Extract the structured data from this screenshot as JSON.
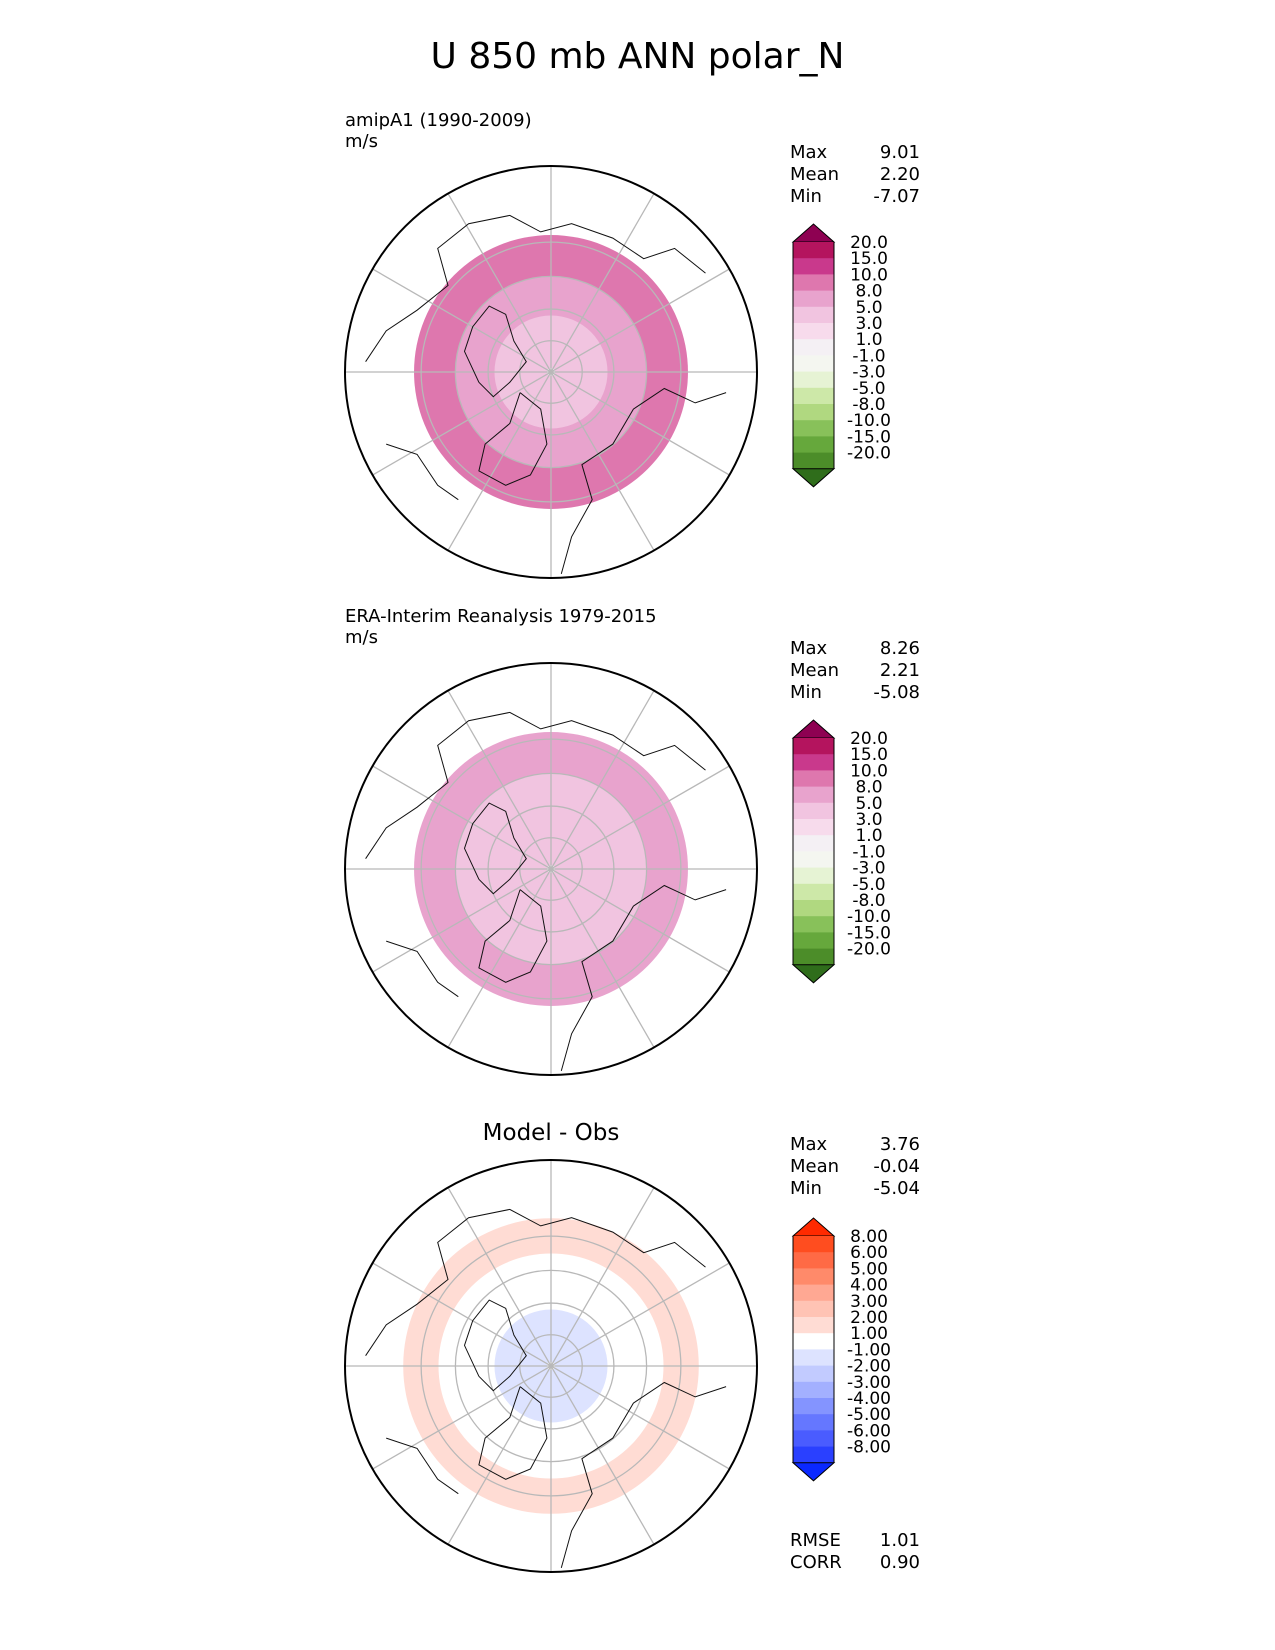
{
  "title": "U 850 mb ANN polar_N",
  "chart_data": [
    {
      "type": "heatmap",
      "projection": "north-polar-stereographic",
      "label_line1": "amipA1 (1990-2009)",
      "label_line2": "m/s",
      "stats": [
        {
          "name": "Max",
          "value": "9.01"
        },
        {
          "name": "Mean",
          "value": "2.20"
        },
        {
          "name": "Min",
          "value": "-7.07"
        }
      ],
      "colorbar_levels": [
        "20.0",
        "15.0",
        "10.0",
        "8.0",
        "5.0",
        "3.0",
        "1.0",
        "-1.0",
        "-3.0",
        "-5.0",
        "-8.0",
        "-10.0",
        "-15.0",
        "-20.0"
      ],
      "colorbar_colors": [
        "#8e0152",
        "#b4145e",
        "#c9398c",
        "#de77ae",
        "#e8a3cd",
        "#f1c4e0",
        "#f7dbec",
        "#f4f0f4",
        "#f4f6f0",
        "#e6f3d4",
        "#cde8a8",
        "#b0d880",
        "#88c15a",
        "#66a83c",
        "#4c8d29",
        "#2f6d1b"
      ],
      "regions": [
        {
          "lat": 90,
          "value": 0
        },
        {
          "lat": 72,
          "value": 3
        },
        {
          "lat": 60,
          "value": 5
        },
        {
          "lat": 48,
          "value": 8
        }
      ]
    },
    {
      "type": "heatmap",
      "projection": "north-polar-stereographic",
      "label_line1": "ERA-Interim Reanalysis 1979-2015",
      "label_line2": "m/s",
      "stats": [
        {
          "name": "Max",
          "value": "8.26"
        },
        {
          "name": "Mean",
          "value": "2.21"
        },
        {
          "name": "Min",
          "value": "-5.08"
        }
      ],
      "colorbar_levels": [
        "20.0",
        "15.0",
        "10.0",
        "8.0",
        "5.0",
        "3.0",
        "1.0",
        "-1.0",
        "-3.0",
        "-5.0",
        "-8.0",
        "-10.0",
        "-15.0",
        "-20.0"
      ],
      "colorbar_colors": [
        "#8e0152",
        "#b4145e",
        "#c9398c",
        "#de77ae",
        "#e8a3cd",
        "#f1c4e0",
        "#f7dbec",
        "#f4f0f4",
        "#f4f6f0",
        "#e6f3d4",
        "#cde8a8",
        "#b0d880",
        "#88c15a",
        "#66a83c",
        "#4c8d29",
        "#2f6d1b"
      ],
      "regions": [
        {
          "lat": 90,
          "value": 0
        },
        {
          "lat": 72,
          "value": 3
        },
        {
          "lat": 60,
          "value": 4
        },
        {
          "lat": 48,
          "value": 6
        }
      ]
    },
    {
      "type": "heatmap",
      "projection": "north-polar-stereographic",
      "title": "Model - Obs",
      "stats": [
        {
          "name": "Max",
          "value": "3.76"
        },
        {
          "name": "Mean",
          "value": "-0.04"
        },
        {
          "name": "Min",
          "value": "-5.04"
        }
      ],
      "metrics": [
        {
          "name": "RMSE",
          "value": "1.01"
        },
        {
          "name": "CORR",
          "value": "0.90"
        }
      ],
      "colorbar_levels": [
        "8.00",
        "6.00",
        "5.00",
        "4.00",
        "3.00",
        "2.00",
        "1.00",
        "-1.00",
        "-2.00",
        "-3.00",
        "-4.00",
        "-5.00",
        "-6.00",
        "-8.00"
      ],
      "colorbar_colors": [
        "#ff2a00",
        "#ff4d1f",
        "#ff6a45",
        "#ff8a6a",
        "#ffa893",
        "#ffc3b4",
        "#ffdcd4",
        "#ffffff",
        "#dde3ff",
        "#c2cbff",
        "#a3b0ff",
        "#8494ff",
        "#6577ff",
        "#4a5cff",
        "#2a40ff",
        "#0a28ff"
      ],
      "regions": [
        {
          "lat": 90,
          "value": 0
        },
        {
          "lat": 72,
          "value": -1.5
        },
        {
          "lat": 55,
          "value": 0
        },
        {
          "lat": 45,
          "value": 1.5
        }
      ]
    }
  ]
}
